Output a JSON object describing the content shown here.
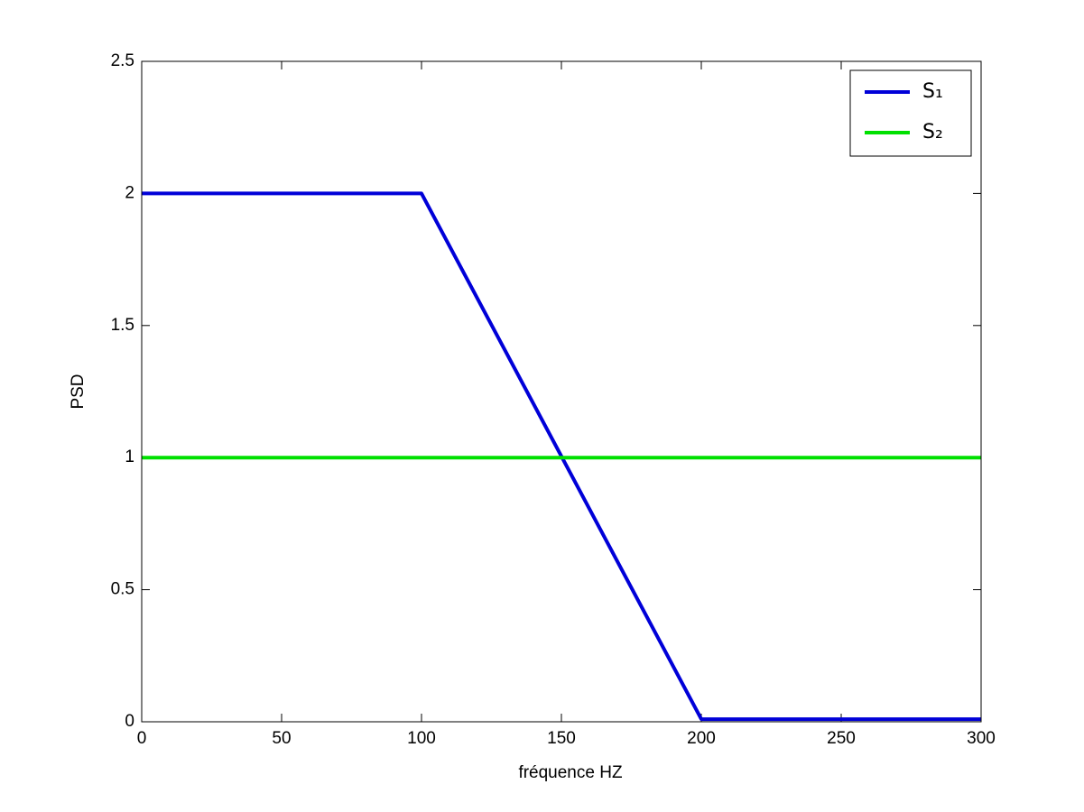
{
  "chart_data": {
    "type": "line",
    "xlabel": "fréquence HZ",
    "ylabel": "PSD",
    "series": [
      {
        "name": "S₁",
        "color": "#0000d8",
        "x": [
          0,
          100,
          200,
          300
        ],
        "values": [
          2,
          2,
          0.01,
          0.01
        ]
      },
      {
        "name": "S₂",
        "color": "#00e000",
        "x": [
          0,
          300
        ],
        "values": [
          1,
          1
        ]
      }
    ],
    "xlim": [
      0,
      300
    ],
    "xticks": [
      0,
      50,
      100,
      150,
      200,
      250,
      300
    ],
    "ylim": [
      0,
      2.5
    ],
    "yticks": [
      0,
      0.5,
      1,
      1.5,
      2,
      2.5
    ],
    "grid": false,
    "legend": "top-right"
  }
}
